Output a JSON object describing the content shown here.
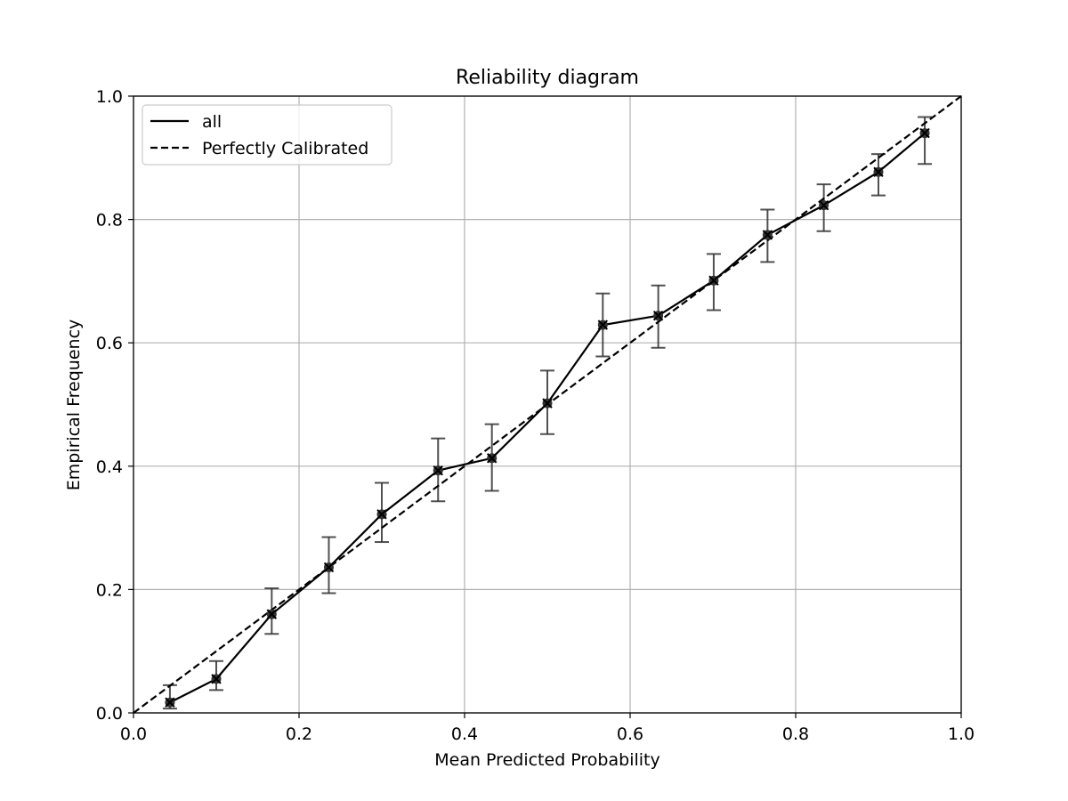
{
  "chart_data": {
    "type": "line",
    "title": "Reliability diagram",
    "xlabel": "Mean Predicted Probability",
    "ylabel": "Empirical Frequency",
    "xlim": [
      0.0,
      1.0
    ],
    "ylim": [
      0.0,
      1.0
    ],
    "grid": true,
    "xticks": [
      {
        "value": 0.0,
        "label": "0.0"
      },
      {
        "value": 0.2,
        "label": "0.2"
      },
      {
        "value": 0.4,
        "label": "0.4"
      },
      {
        "value": 0.6,
        "label": "0.6"
      },
      {
        "value": 0.8,
        "label": "0.8"
      },
      {
        "value": 1.0,
        "label": "1.0"
      }
    ],
    "yticks": [
      {
        "value": 0.0,
        "label": "0.0"
      },
      {
        "value": 0.2,
        "label": "0.2"
      },
      {
        "value": 0.4,
        "label": "0.4"
      },
      {
        "value": 0.6,
        "label": "0.6"
      },
      {
        "value": 0.8,
        "label": "0.8"
      },
      {
        "value": 1.0,
        "label": "1.0"
      }
    ],
    "legend_position": "top-left",
    "series": [
      {
        "name": "all",
        "style": "solid",
        "color": "#000000",
        "marker": "x-filled-circle",
        "x": [
          0.044,
          0.1,
          0.167,
          0.236,
          0.3,
          0.368,
          0.433,
          0.5,
          0.567,
          0.634,
          0.701,
          0.766,
          0.834,
          0.9,
          0.956
        ],
        "y": [
          0.017,
          0.055,
          0.16,
          0.236,
          0.322,
          0.393,
          0.413,
          0.502,
          0.629,
          0.644,
          0.701,
          0.775,
          0.823,
          0.877,
          0.94
        ],
        "err_low": [
          0.007,
          0.037,
          0.128,
          0.194,
          0.277,
          0.343,
          0.36,
          0.452,
          0.578,
          0.592,
          0.653,
          0.731,
          0.781,
          0.839,
          0.89
        ],
        "err_high": [
          0.045,
          0.084,
          0.202,
          0.285,
          0.373,
          0.445,
          0.468,
          0.555,
          0.68,
          0.693,
          0.744,
          0.816,
          0.857,
          0.906,
          0.966
        ]
      },
      {
        "name": "Perfectly Calibrated",
        "style": "dashed",
        "color": "#000000",
        "x": [
          0.0,
          1.0
        ],
        "y": [
          0.0,
          1.0
        ]
      }
    ]
  }
}
